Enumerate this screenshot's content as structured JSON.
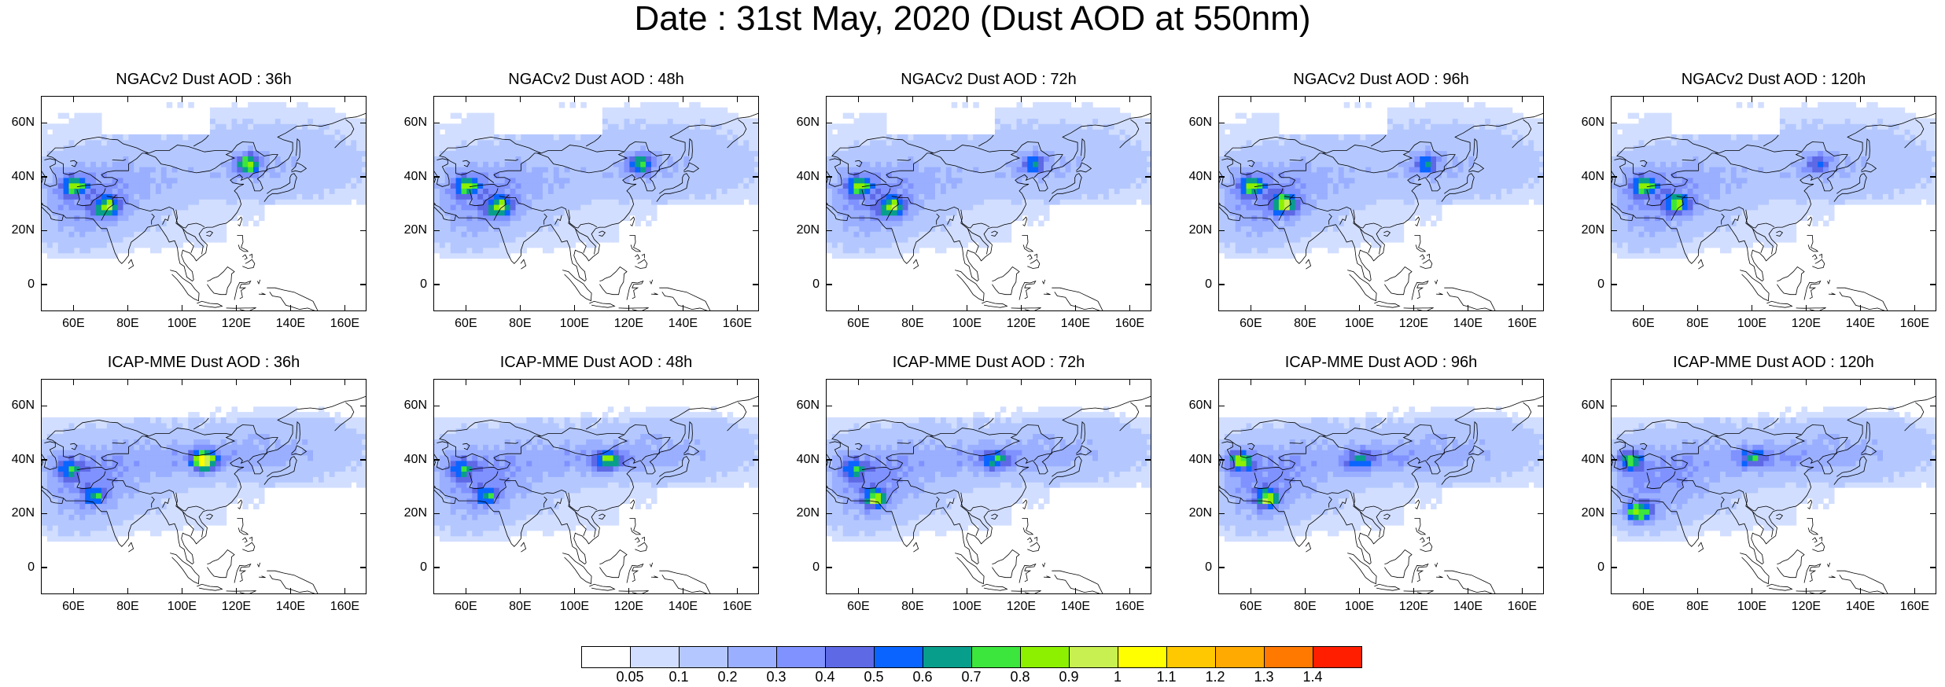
{
  "title": "Date : 31st May, 2020 (Dust AOD at 550nm)",
  "map_axes": {
    "lat_labels": [
      "60N",
      "40N",
      "20N",
      "0"
    ],
    "lon_labels": [
      "60E",
      "80E",
      "100E",
      "120E",
      "140E",
      "160E"
    ],
    "lat_range": [
      -10,
      70
    ],
    "lon_range": [
      48,
      168
    ]
  },
  "panels": [
    {
      "title": "NGACv2 Dust AOD : 36h",
      "model": "NGAC",
      "hotspots": [
        [
          72,
          29,
          0.7
        ],
        [
          124,
          45,
          0.7
        ],
        [
          60,
          37,
          0.5
        ]
      ]
    },
    {
      "title": "NGACv2 Dust AOD : 48h",
      "model": "NGAC",
      "hotspots": [
        [
          72,
          29,
          0.7
        ],
        [
          124,
          45,
          0.6
        ],
        [
          60,
          37,
          0.5
        ]
      ]
    },
    {
      "title": "NGACv2 Dust AOD : 72h",
      "model": "NGAC",
      "hotspots": [
        [
          72,
          29,
          0.7
        ],
        [
          124,
          45,
          0.5
        ],
        [
          60,
          37,
          0.5
        ]
      ]
    },
    {
      "title": "NGACv2 Dust AOD : 96h",
      "model": "NGAC",
      "hotspots": [
        [
          72,
          30,
          0.7
        ],
        [
          124,
          45,
          0.5
        ],
        [
          60,
          37,
          0.5
        ]
      ]
    },
    {
      "title": "NGACv2 Dust AOD : 120h",
      "model": "NGAC",
      "hotspots": [
        [
          72,
          30,
          0.6
        ],
        [
          124,
          45,
          0.4
        ],
        [
          60,
          37,
          0.5
        ]
      ]
    },
    {
      "title": "ICAP-MME Dust AOD : 36h",
      "model": "ICAP",
      "hotspots": [
        [
          108,
          40,
          0.8
        ],
        [
          68,
          27,
          0.4
        ],
        [
          58,
          37,
          0.4
        ]
      ]
    },
    {
      "title": "ICAP-MME Dust AOD : 48h",
      "model": "ICAP",
      "hotspots": [
        [
          112,
          40,
          0.5
        ],
        [
          68,
          27,
          0.4
        ],
        [
          58,
          37,
          0.4
        ]
      ]
    },
    {
      "title": "ICAP-MME Dust AOD : 72h",
      "model": "ICAP",
      "hotspots": [
        [
          66,
          26,
          0.6
        ],
        [
          110,
          40,
          0.4
        ],
        [
          58,
          37,
          0.4
        ]
      ]
    },
    {
      "title": "ICAP-MME Dust AOD : 96h",
      "model": "ICAP",
      "hotspots": [
        [
          56,
          40,
          0.6
        ],
        [
          66,
          26,
          0.6
        ],
        [
          100,
          40,
          0.4
        ]
      ]
    },
    {
      "title": "ICAP-MME Dust AOD : 120h",
      "model": "ICAP",
      "hotspots": [
        [
          58,
          21,
          0.7
        ],
        [
          55,
          40,
          0.5
        ],
        [
          100,
          41,
          0.4
        ]
      ]
    }
  ],
  "colorbar": {
    "labels": [
      "0.05",
      "0.1",
      "0.2",
      "0.3",
      "0.4",
      "0.5",
      "0.6",
      "0.7",
      "0.8",
      "0.9",
      "1",
      "1.1",
      "1.2",
      "1.3",
      "1.4"
    ],
    "colors": [
      "#ffffff",
      "#d2deff",
      "#b4c8ff",
      "#9aafff",
      "#7f92ff",
      "#5e69e6",
      "#0a64ff",
      "#089e8c",
      "#3ce63c",
      "#8cf000",
      "#c8f050",
      "#ffff00",
      "#ffc800",
      "#ffaa00",
      "#ff7800",
      "#ff1e00"
    ]
  }
}
